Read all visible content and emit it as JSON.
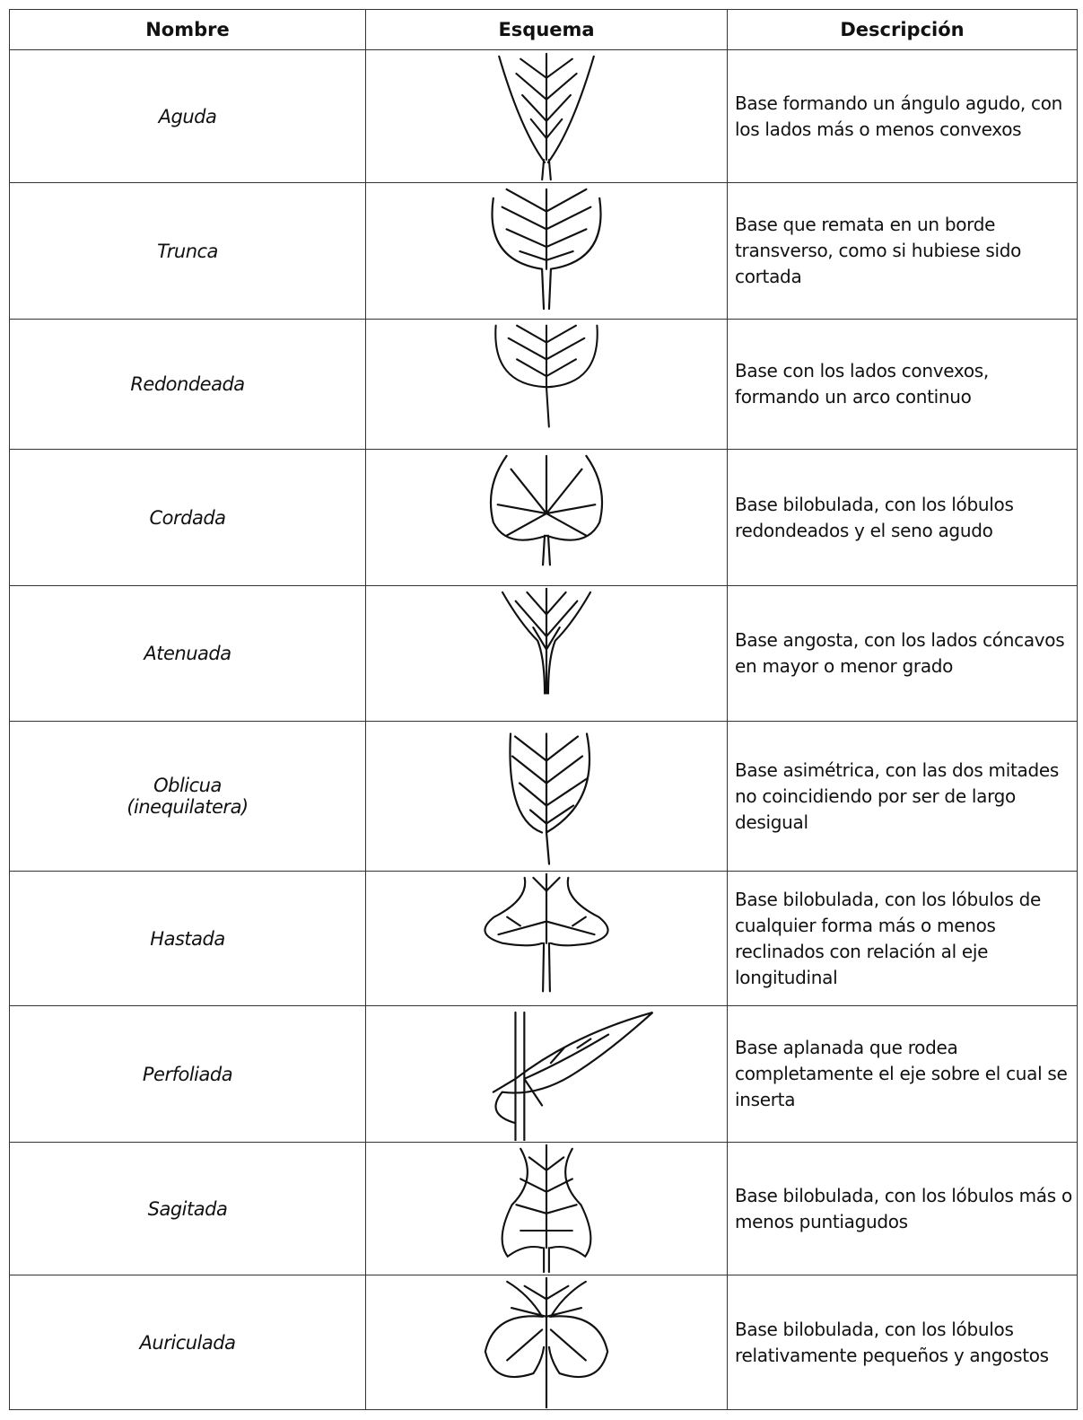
{
  "table": {
    "header": [
      "Nombre",
      "Esquema",
      "Descripción"
    ],
    "rows": [
      [
        "Aguda",
        "Base formando un ángulo agudo, con los lados más o menos convexos"
      ],
      [
        "Trunca",
        "Base que remata en un borde transverso, como si hubiese sido cortada"
      ],
      [
        "Redondeada",
        "Base con los lados convexos, formando un arco continuo"
      ],
      [
        "Cordada",
        "Base bilobulada, con los lóbulos redondeados y el seno agudo"
      ],
      [
        "Atenuada",
        "Base angosta, con los lados cóncavos en mayor o menor grado"
      ],
      [
        "Oblicua\n(inequilatera)",
        "Base asimétrica, con las dos mitades no coincidiendo por ser de largo desigual"
      ],
      [
        "Hastada",
        "Base bilobulada, con los lóbulos de cualquier forma más o menos reclinados con relación al eje longitudinal"
      ],
      [
        "Perfoliada",
        "Base aplanada que rodea completamente el eje sobre el cual se inserta"
      ],
      [
        "Sagitada",
        "Base bilobulada, con los lóbulos más o menos puntiagudos"
      ],
      [
        "Auriculada",
        "Base bilobulada, con los lóbulos relativamente pequeños y angostos"
      ]
    ]
  }
}
